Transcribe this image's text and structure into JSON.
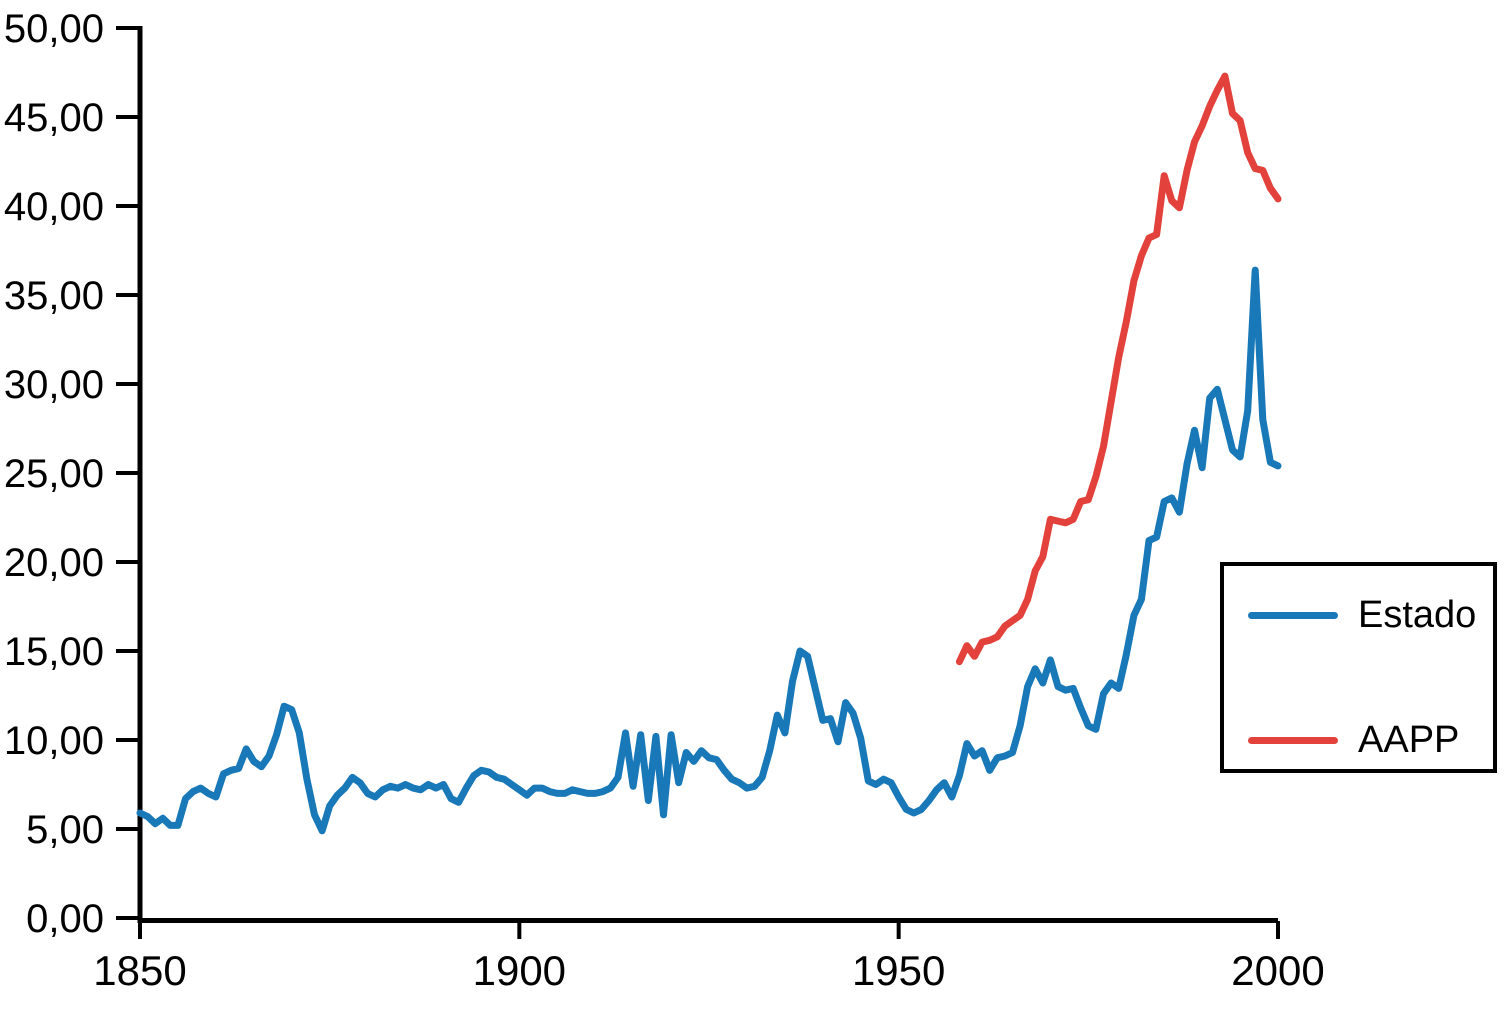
{
  "chart_data": {
    "type": "line",
    "title": "",
    "grid": false,
    "background_color": "#ffffff",
    "axis_color": "#000000",
    "x_axis": {
      "range": [
        1850,
        2000
      ],
      "ticks": [
        1850,
        1900,
        1950,
        2000
      ],
      "tick_labels": [
        "1850",
        "1900",
        "1950",
        "2000"
      ]
    },
    "y_axis": {
      "range": [
        0,
        50
      ],
      "ticks": [
        0,
        5,
        10,
        15,
        20,
        25,
        30,
        35,
        40,
        45,
        50
      ],
      "tick_labels": [
        "0,00",
        "5,00",
        "10,00",
        "15,00",
        "20,00",
        "25,00",
        "30,00",
        "35,00",
        "40,00",
        "45,00",
        "50,00"
      ]
    },
    "legend": {
      "position": "middle-right",
      "border": true,
      "entries": [
        "Estado",
        "AAPP"
      ]
    },
    "series": [
      {
        "name": "Estado",
        "color": "#1878b8",
        "points": [
          [
            1850,
            5.9
          ],
          [
            1851,
            5.7
          ],
          [
            1852,
            5.3
          ],
          [
            1853,
            5.6
          ],
          [
            1854,
            5.2
          ],
          [
            1855,
            5.2
          ],
          [
            1856,
            6.7
          ],
          [
            1857,
            7.1
          ],
          [
            1858,
            7.3
          ],
          [
            1859,
            7.0
          ],
          [
            1860,
            6.8
          ],
          [
            1861,
            8.1
          ],
          [
            1862,
            8.3
          ],
          [
            1863,
            8.4
          ],
          [
            1864,
            9.5
          ],
          [
            1865,
            8.8
          ],
          [
            1866,
            8.5
          ],
          [
            1867,
            9.1
          ],
          [
            1868,
            10.3
          ],
          [
            1869,
            11.9
          ],
          [
            1870,
            11.7
          ],
          [
            1871,
            10.4
          ],
          [
            1872,
            7.8
          ],
          [
            1873,
            5.8
          ],
          [
            1874,
            4.9
          ],
          [
            1875,
            6.3
          ],
          [
            1876,
            6.9
          ],
          [
            1877,
            7.3
          ],
          [
            1878,
            7.9
          ],
          [
            1879,
            7.6
          ],
          [
            1880,
            7.0
          ],
          [
            1881,
            6.8
          ],
          [
            1882,
            7.2
          ],
          [
            1883,
            7.4
          ],
          [
            1884,
            7.3
          ],
          [
            1885,
            7.5
          ],
          [
            1886,
            7.3
          ],
          [
            1887,
            7.2
          ],
          [
            1888,
            7.5
          ],
          [
            1889,
            7.3
          ],
          [
            1890,
            7.5
          ],
          [
            1891,
            6.7
          ],
          [
            1892,
            6.5
          ],
          [
            1893,
            7.3
          ],
          [
            1894,
            8.0
          ],
          [
            1895,
            8.3
          ],
          [
            1896,
            8.2
          ],
          [
            1897,
            7.9
          ],
          [
            1898,
            7.8
          ],
          [
            1899,
            7.5
          ],
          [
            1900,
            7.2
          ],
          [
            1901,
            6.9
          ],
          [
            1902,
            7.3
          ],
          [
            1903,
            7.3
          ],
          [
            1904,
            7.1
          ],
          [
            1905,
            7.0
          ],
          [
            1906,
            7.0
          ],
          [
            1907,
            7.2
          ],
          [
            1908,
            7.1
          ],
          [
            1909,
            7.0
          ],
          [
            1910,
            7.0
          ],
          [
            1911,
            7.1
          ],
          [
            1912,
            7.3
          ],
          [
            1913,
            7.9
          ],
          [
            1914,
            10.4
          ],
          [
            1915,
            7.4
          ],
          [
            1916,
            10.3
          ],
          [
            1917,
            6.6
          ],
          [
            1918,
            10.2
          ],
          [
            1919,
            5.8
          ],
          [
            1920,
            10.3
          ],
          [
            1921,
            7.6
          ],
          [
            1922,
            9.3
          ],
          [
            1923,
            8.8
          ],
          [
            1924,
            9.4
          ],
          [
            1925,
            9.0
          ],
          [
            1926,
            8.9
          ],
          [
            1927,
            8.3
          ],
          [
            1928,
            7.8
          ],
          [
            1929,
            7.6
          ],
          [
            1930,
            7.3
          ],
          [
            1931,
            7.4
          ],
          [
            1932,
            7.9
          ],
          [
            1933,
            9.4
          ],
          [
            1934,
            11.4
          ],
          [
            1935,
            10.4
          ],
          [
            1936,
            13.3
          ],
          [
            1937,
            15.0
          ],
          [
            1938,
            14.7
          ],
          [
            1939,
            12.9
          ],
          [
            1940,
            11.1
          ],
          [
            1941,
            11.2
          ],
          [
            1942,
            9.9
          ],
          [
            1943,
            12.1
          ],
          [
            1944,
            11.5
          ],
          [
            1945,
            10.1
          ],
          [
            1946,
            7.7
          ],
          [
            1947,
            7.5
          ],
          [
            1948,
            7.8
          ],
          [
            1949,
            7.6
          ],
          [
            1950,
            6.8
          ],
          [
            1951,
            6.1
          ],
          [
            1952,
            5.9
          ],
          [
            1953,
            6.1
          ],
          [
            1954,
            6.6
          ],
          [
            1955,
            7.2
          ],
          [
            1956,
            7.6
          ],
          [
            1957,
            6.8
          ],
          [
            1958,
            8.0
          ],
          [
            1959,
            9.8
          ],
          [
            1960,
            9.1
          ],
          [
            1961,
            9.4
          ],
          [
            1962,
            8.3
          ],
          [
            1963,
            9.0
          ],
          [
            1964,
            9.1
          ],
          [
            1965,
            9.3
          ],
          [
            1966,
            10.8
          ],
          [
            1967,
            13.0
          ],
          [
            1968,
            14.0
          ],
          [
            1969,
            13.2
          ],
          [
            1970,
            14.5
          ],
          [
            1971,
            13.0
          ],
          [
            1972,
            12.8
          ],
          [
            1973,
            12.9
          ],
          [
            1974,
            11.8
          ],
          [
            1975,
            10.8
          ],
          [
            1976,
            10.6
          ],
          [
            1977,
            12.6
          ],
          [
            1978,
            13.2
          ],
          [
            1979,
            12.9
          ],
          [
            1980,
            14.8
          ],
          [
            1981,
            17.0
          ],
          [
            1982,
            17.9
          ],
          [
            1983,
            21.2
          ],
          [
            1984,
            21.4
          ],
          [
            1985,
            23.4
          ],
          [
            1986,
            23.6
          ],
          [
            1987,
            22.8
          ],
          [
            1988,
            25.5
          ],
          [
            1989,
            27.4
          ],
          [
            1990,
            25.3
          ],
          [
            1991,
            29.2
          ],
          [
            1992,
            29.7
          ],
          [
            1993,
            28.0
          ],
          [
            1994,
            26.3
          ],
          [
            1995,
            25.9
          ],
          [
            1996,
            28.5
          ],
          [
            1997,
            36.4
          ],
          [
            1998,
            28.0
          ],
          [
            1999,
            25.6
          ],
          [
            2000,
            25.4
          ]
        ]
      },
      {
        "name": "AAPP",
        "color": "#e2423b",
        "points": [
          [
            1958,
            14.4
          ],
          [
            1959,
            15.3
          ],
          [
            1960,
            14.7
          ],
          [
            1961,
            15.5
          ],
          [
            1962,
            15.6
          ],
          [
            1963,
            15.8
          ],
          [
            1964,
            16.4
          ],
          [
            1965,
            16.7
          ],
          [
            1966,
            17.0
          ],
          [
            1967,
            17.9
          ],
          [
            1968,
            19.5
          ],
          [
            1969,
            20.3
          ],
          [
            1970,
            22.4
          ],
          [
            1971,
            22.3
          ],
          [
            1972,
            22.2
          ],
          [
            1973,
            22.4
          ],
          [
            1974,
            23.4
          ],
          [
            1975,
            23.5
          ],
          [
            1976,
            24.8
          ],
          [
            1977,
            26.5
          ],
          [
            1978,
            29.0
          ],
          [
            1979,
            31.5
          ],
          [
            1980,
            33.5
          ],
          [
            1981,
            35.8
          ],
          [
            1982,
            37.2
          ],
          [
            1983,
            38.2
          ],
          [
            1984,
            38.4
          ],
          [
            1985,
            41.7
          ],
          [
            1986,
            40.3
          ],
          [
            1987,
            39.9
          ],
          [
            1988,
            42.0
          ],
          [
            1989,
            43.6
          ],
          [
            1990,
            44.5
          ],
          [
            1991,
            45.6
          ],
          [
            1992,
            46.5
          ],
          [
            1993,
            47.3
          ],
          [
            1994,
            45.2
          ],
          [
            1995,
            44.8
          ],
          [
            1996,
            43.0
          ],
          [
            1997,
            42.1
          ],
          [
            1998,
            42.0
          ],
          [
            1999,
            41.0
          ],
          [
            2000,
            40.4
          ]
        ]
      }
    ]
  }
}
